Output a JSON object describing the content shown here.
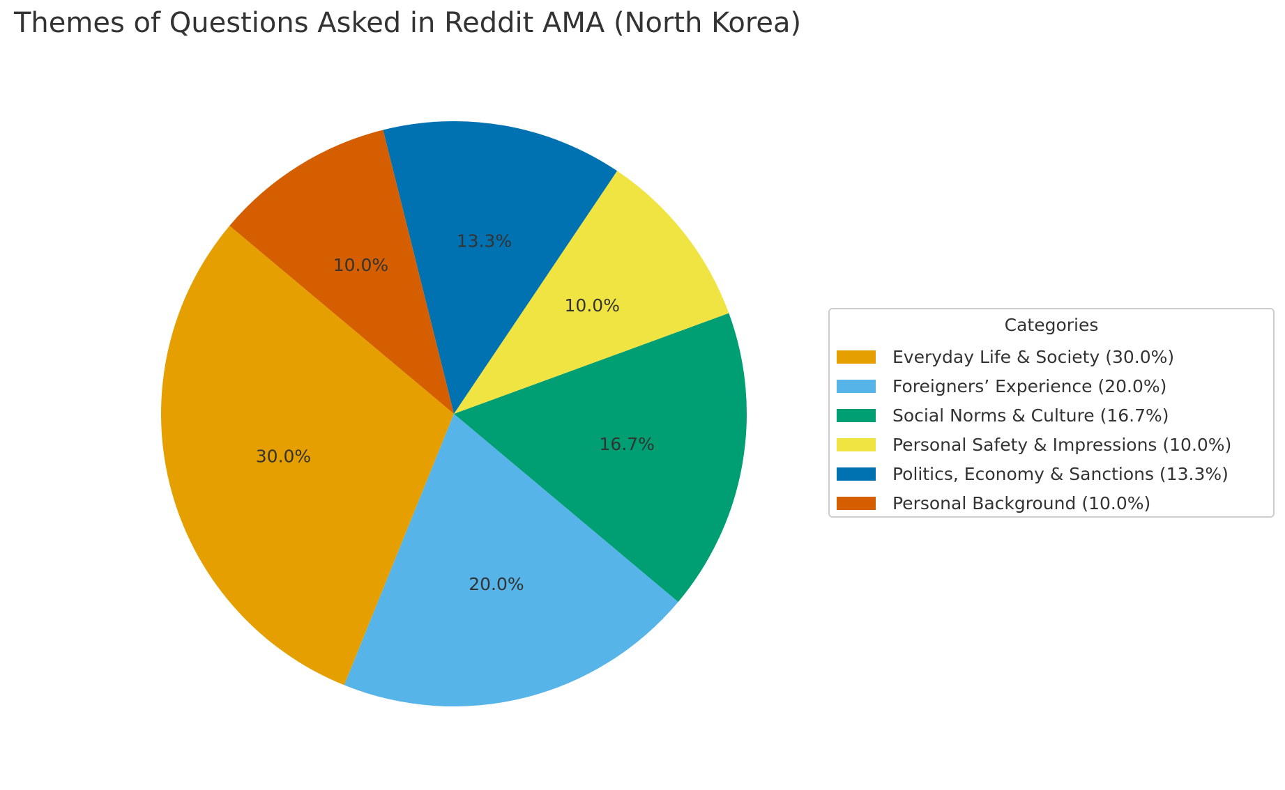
{
  "chart_data": {
    "type": "pie",
    "title": "Themes of Questions Asked in Reddit AMA (North Korea)",
    "legend_title": "Categories",
    "legend_position": "right",
    "slices": [
      {
        "label": "Everyday Life & Society",
        "value": 30.0,
        "pct_label": "30.0%",
        "legend_label": "Everyday Life & Society (30.0%)",
        "color": "#E69F00"
      },
      {
        "label": "Foreigners’ Experience",
        "value": 20.0,
        "pct_label": "20.0%",
        "legend_label": "Foreigners’ Experience (20.0%)",
        "color": "#56B4E9"
      },
      {
        "label": "Social Norms & Culture",
        "value": 16.7,
        "pct_label": "16.7%",
        "legend_label": "Social Norms & Culture (16.7%)",
        "color": "#009E73"
      },
      {
        "label": "Personal Safety & Impressions",
        "value": 10.0,
        "pct_label": "10.0%",
        "legend_label": "Personal Safety & Impressions (10.0%)",
        "color": "#F0E442"
      },
      {
        "label": "Politics, Economy & Sanctions",
        "value": 13.3,
        "pct_label": "13.3%",
        "legend_label": "Politics, Economy & Sanctions (13.3%)",
        "color": "#0072B2"
      },
      {
        "label": "Personal Background",
        "value": 10.0,
        "pct_label": "10.0%",
        "legend_label": "Personal Background (10.0%)",
        "color": "#D55E00"
      }
    ]
  }
}
